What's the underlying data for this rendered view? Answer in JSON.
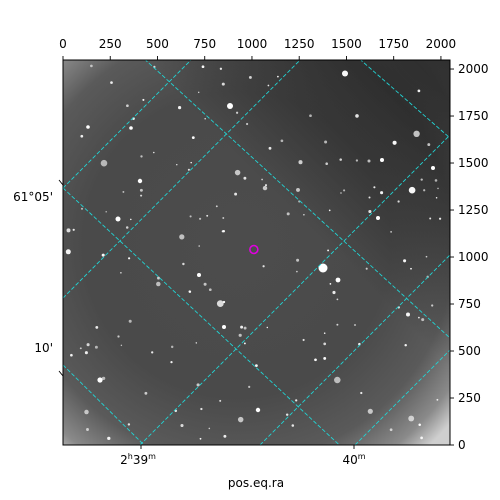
{
  "chart_data": {
    "type": "image",
    "xlabel": "pos.eq.ra",
    "ylabel": "",
    "xlim": [
      0,
      2048
    ],
    "ylim": [
      0,
      2048
    ],
    "top_x_ticks": [
      "0",
      "250",
      "500",
      "750",
      "1000",
      "1250",
      "1500",
      "1750",
      "2000"
    ],
    "right_y_ticks": [
      "0",
      "250",
      "500",
      "750",
      "1000",
      "1250",
      "1500",
      "1750",
      "2000"
    ],
    "bottom_ra_ticks": [
      {
        "h": "2",
        "hsup": "h",
        "m": "39",
        "msup": "m"
      },
      {
        "h": "",
        "hsup": "",
        "m": "40",
        "msup": "m"
      }
    ],
    "left_dec_ticks": [
      "61°05'",
      "10'"
    ],
    "grid": true,
    "grid_color": "#22d3d3",
    "marker": {
      "x": 1010,
      "y": 1040,
      "color": "#e000e0"
    },
    "colormap": "gray"
  }
}
